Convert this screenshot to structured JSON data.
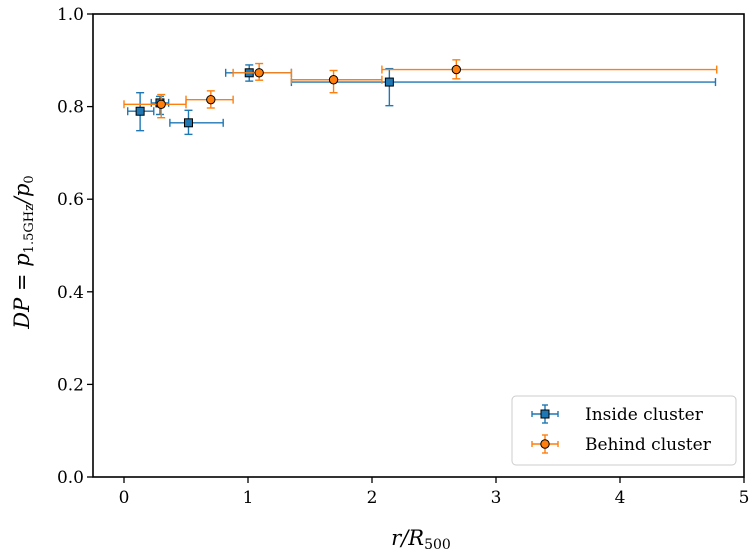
{
  "chart_data": {
    "type": "scatter",
    "title": "",
    "xlabel": "r/R500",
    "ylabel": "DP = p1.5GHz/p0",
    "xlim": [
      -0.25,
      5
    ],
    "ylim": [
      0,
      1
    ],
    "xticks": [
      0,
      1,
      2,
      3,
      4,
      5
    ],
    "xtick_labels": [
      "0",
      "1",
      "2",
      "3",
      "4",
      "5"
    ],
    "yticks": [
      0,
      0.2,
      0.4,
      0.6,
      0.8,
      1.0
    ],
    "ytick_labels": [
      "0.0",
      "0.2",
      "0.4",
      "0.6",
      "0.8",
      "1.0"
    ],
    "grid": false,
    "legend_position": "lower-right",
    "series": [
      {
        "name": "Inside cluster",
        "color": "#1f77b4",
        "marker": "square",
        "points": [
          {
            "x": 0.13,
            "y": 0.79,
            "xlo": 0.03,
            "xhi": 0.24,
            "ylo": 0.748,
            "yhi": 0.83
          },
          {
            "x": 0.29,
            "y": 0.808,
            "xlo": 0.22,
            "xhi": 0.36,
            "ylo": 0.783,
            "yhi": 0.822
          },
          {
            "x": 0.52,
            "y": 0.765,
            "xlo": 0.37,
            "xhi": 0.8,
            "ylo": 0.74,
            "yhi": 0.792
          },
          {
            "x": 1.01,
            "y": 0.873,
            "xlo": 0.82,
            "xhi": 1.35,
            "ylo": 0.855,
            "yhi": 0.89
          },
          {
            "x": 2.14,
            "y": 0.853,
            "xlo": 1.35,
            "xhi": 4.77,
            "ylo": 0.802,
            "yhi": 0.882
          }
        ]
      },
      {
        "name": "Behind cluster",
        "color": "#ff7f0e",
        "marker": "circle",
        "points": [
          {
            "x": 0.3,
            "y": 0.805,
            "xlo": 0.0,
            "xhi": 0.5,
            "ylo": 0.776,
            "yhi": 0.826
          },
          {
            "x": 0.7,
            "y": 0.815,
            "xlo": 0.5,
            "xhi": 0.88,
            "ylo": 0.797,
            "yhi": 0.834
          },
          {
            "x": 1.09,
            "y": 0.873,
            "xlo": 0.88,
            "xhi": 1.35,
            "ylo": 0.857,
            "yhi": 0.893
          },
          {
            "x": 1.69,
            "y": 0.858,
            "xlo": 1.35,
            "xhi": 2.08,
            "ylo": 0.83,
            "yhi": 0.878
          },
          {
            "x": 2.68,
            "y": 0.88,
            "xlo": 2.08,
            "xhi": 4.78,
            "ylo": 0.86,
            "yhi": 0.901
          }
        ]
      }
    ]
  }
}
